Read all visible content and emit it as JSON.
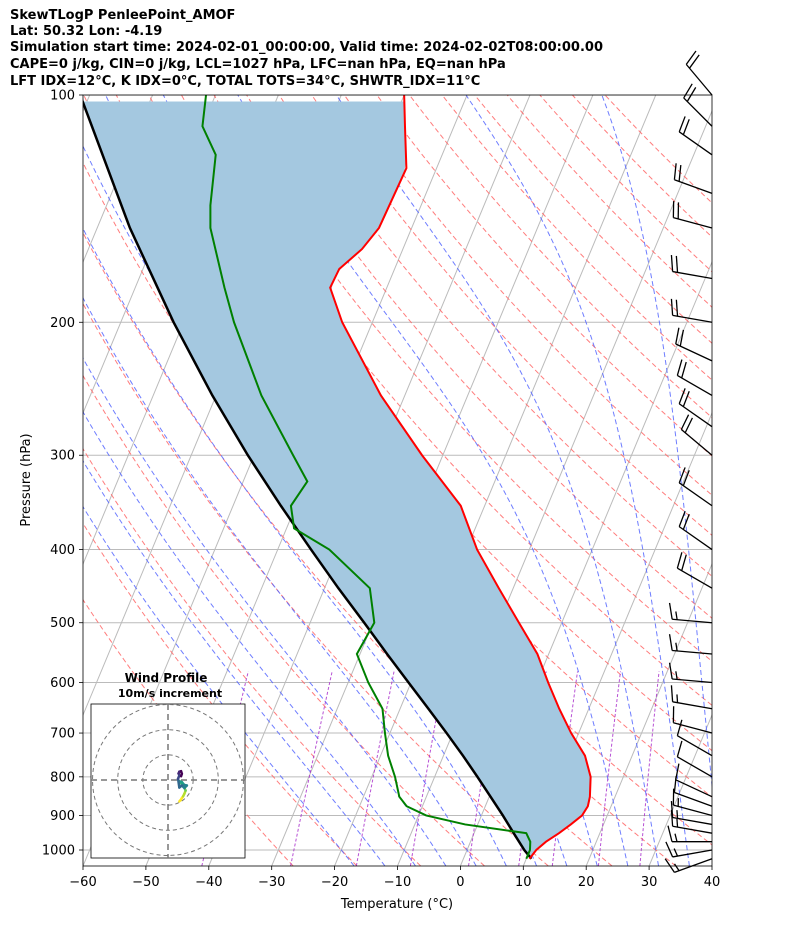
{
  "header": {
    "line1": "SkewTLogP PenleePoint_AMOF",
    "line2": "Lat: 50.32   Lon: -4.19",
    "line3": "Simulation start time: 2024-02-01_00:00:00, Valid time: 2024-02-02T08:00:00.00",
    "line4": "CAPE=0 j/kg, CIN=0 j/kg, LCL=1027 hPa, LFC=nan hPa, EQ=nan hPa",
    "line5": "LFT IDX=12°C, K IDX=0°C, TOTAL TOTS=34°C, SHWTR_IDX=11°C"
  },
  "chart_data": {
    "type": "skew-t log-p",
    "xlabel": "Temperature (°C)",
    "ylabel": "Pressure (hPa)",
    "xlim": [
      -60,
      40
    ],
    "ylim": [
      1050,
      100
    ],
    "skew_degC_per_decade": 50,
    "x_ticks": [
      "−60",
      "−50",
      "−40",
      "−30",
      "−20",
      "−10",
      "0",
      "10",
      "20",
      "30",
      "40"
    ],
    "y_ticks": [
      "100",
      "200",
      "300",
      "400",
      "500",
      "600",
      "700",
      "800",
      "900",
      "1000"
    ],
    "colors": {
      "temperature": "#ff0000",
      "dewpoint": "#008000",
      "parcel": "#000000",
      "cin_fill": "#a4c8e0",
      "dry_adiabats": "#ff6666",
      "moist_adiabats": "#5566ff",
      "mixing_ratio": "#aa33cc",
      "isotherms": "#bbbbbb",
      "wind_barbs": "#000000"
    },
    "temperature": [
      {
        "p": 1027,
        "t": 10.5
      },
      {
        "p": 1000,
        "t": 11.0
      },
      {
        "p": 975,
        "t": 12.0
      },
      {
        "p": 950,
        "t": 13.5
      },
      {
        "p": 925,
        "t": 14.8
      },
      {
        "p": 900,
        "t": 16.0
      },
      {
        "p": 875,
        "t": 16.3
      },
      {
        "p": 850,
        "t": 16.0
      },
      {
        "p": 800,
        "t": 14.8
      },
      {
        "p": 750,
        "t": 12.5
      },
      {
        "p": 700,
        "t": 8.8
      },
      {
        "p": 650,
        "t": 5.3
      },
      {
        "p": 600,
        "t": 1.8
      },
      {
        "p": 550,
        "t": -1.8
      },
      {
        "p": 500,
        "t": -6.8
      },
      {
        "p": 450,
        "t": -12.3
      },
      {
        "p": 400,
        "t": -18.3
      },
      {
        "p": 350,
        "t": -23.8
      },
      {
        "p": 300,
        "t": -33.3
      },
      {
        "p": 250,
        "t": -43.8
      },
      {
        "p": 200,
        "t": -54.8
      },
      {
        "p": 180,
        "t": -59.0
      },
      {
        "p": 170,
        "t": -58.8
      },
      {
        "p": 160,
        "t": -56.5
      },
      {
        "p": 150,
        "t": -55.2
      },
      {
        "p": 125,
        "t": -54.8
      },
      {
        "p": 110,
        "t": -57.8
      },
      {
        "p": 100,
        "t": -60.0
      }
    ],
    "dewpoint": [
      {
        "p": 1027,
        "t": 10.0
      },
      {
        "p": 1000,
        "t": 10.0
      },
      {
        "p": 975,
        "t": 9.5
      },
      {
        "p": 950,
        "t": 8.3
      },
      {
        "p": 925,
        "t": -2.0
      },
      {
        "p": 900,
        "t": -8.8
      },
      {
        "p": 875,
        "t": -12.5
      },
      {
        "p": 850,
        "t": -14.3
      },
      {
        "p": 800,
        "t": -16.3
      },
      {
        "p": 750,
        "t": -18.8
      },
      {
        "p": 700,
        "t": -20.8
      },
      {
        "p": 650,
        "t": -22.8
      },
      {
        "p": 600,
        "t": -26.8
      },
      {
        "p": 550,
        "t": -30.5
      },
      {
        "p": 500,
        "t": -29.8
      },
      {
        "p": 450,
        "t": -32.8
      },
      {
        "p": 400,
        "t": -41.8
      },
      {
        "p": 375,
        "t": -48.8
      },
      {
        "p": 350,
        "t": -50.8
      },
      {
        "p": 325,
        "t": -49.8
      },
      {
        "p": 300,
        "t": -53.8
      },
      {
        "p": 250,
        "t": -62.8
      },
      {
        "p": 200,
        "t": -72.0
      },
      {
        "p": 180,
        "t": -75.8
      },
      {
        "p": 150,
        "t": -82.0
      },
      {
        "p": 140,
        "t": -83.5
      },
      {
        "p": 120,
        "t": -86.0
      },
      {
        "p": 110,
        "t": -90.0
      },
      {
        "p": 100,
        "t": -91.5
      }
    ],
    "parcel": [
      {
        "p": 1027,
        "t": 10.8
      },
      {
        "p": 1000,
        "t": 9.1
      },
      {
        "p": 950,
        "t": 6.3
      },
      {
        "p": 900,
        "t": 3.4
      },
      {
        "p": 850,
        "t": 0.2
      },
      {
        "p": 800,
        "t": -3.2
      },
      {
        "p": 750,
        "t": -6.9
      },
      {
        "p": 700,
        "t": -11.0
      },
      {
        "p": 650,
        "t": -15.5
      },
      {
        "p": 600,
        "t": -20.4
      },
      {
        "p": 550,
        "t": -25.7
      },
      {
        "p": 500,
        "t": -31.4
      },
      {
        "p": 450,
        "t": -37.8
      },
      {
        "p": 400,
        "t": -44.7
      },
      {
        "p": 350,
        "t": -52.4
      },
      {
        "p": 300,
        "t": -61.0
      },
      {
        "p": 250,
        "t": -70.6
      },
      {
        "p": 200,
        "t": -81.6
      },
      {
        "p": 150,
        "t": -94.8
      },
      {
        "p": 100,
        "t": -111.5
      }
    ],
    "wind_barbs": [
      {
        "p": 1027,
        "speed_kt": 15,
        "dir_deg": 250
      },
      {
        "p": 1000,
        "speed_kt": 15,
        "dir_deg": 260
      },
      {
        "p": 975,
        "speed_kt": 15,
        "dir_deg": 270
      },
      {
        "p": 950,
        "speed_kt": 15,
        "dir_deg": 280
      },
      {
        "p": 925,
        "speed_kt": 15,
        "dir_deg": 280
      },
      {
        "p": 900,
        "speed_kt": 15,
        "dir_deg": 285
      },
      {
        "p": 875,
        "speed_kt": 10,
        "dir_deg": 290
      },
      {
        "p": 850,
        "speed_kt": 10,
        "dir_deg": 295
      },
      {
        "p": 800,
        "speed_kt": 10,
        "dir_deg": 300
      },
      {
        "p": 750,
        "speed_kt": 10,
        "dir_deg": 300
      },
      {
        "p": 700,
        "speed_kt": 10,
        "dir_deg": 285
      },
      {
        "p": 650,
        "speed_kt": 15,
        "dir_deg": 280
      },
      {
        "p": 600,
        "speed_kt": 15,
        "dir_deg": 275
      },
      {
        "p": 550,
        "speed_kt": 15,
        "dir_deg": 275
      },
      {
        "p": 500,
        "speed_kt": 15,
        "dir_deg": 275
      },
      {
        "p": 450,
        "speed_kt": 20,
        "dir_deg": 300
      },
      {
        "p": 400,
        "speed_kt": 20,
        "dir_deg": 305
      },
      {
        "p": 350,
        "speed_kt": 20,
        "dir_deg": 305
      },
      {
        "p": 300,
        "speed_kt": 20,
        "dir_deg": 310
      },
      {
        "p": 275,
        "speed_kt": 20,
        "dir_deg": 305
      },
      {
        "p": 250,
        "speed_kt": 20,
        "dir_deg": 300
      },
      {
        "p": 225,
        "speed_kt": 20,
        "dir_deg": 295
      },
      {
        "p": 200,
        "speed_kt": 20,
        "dir_deg": 280
      },
      {
        "p": 175,
        "speed_kt": 20,
        "dir_deg": 280
      },
      {
        "p": 150,
        "speed_kt": 20,
        "dir_deg": 285
      },
      {
        "p": 135,
        "speed_kt": 20,
        "dir_deg": 290
      },
      {
        "p": 120,
        "speed_kt": 20,
        "dir_deg": 305
      },
      {
        "p": 110,
        "speed_kt": 20,
        "dir_deg": 315
      },
      {
        "p": 100,
        "speed_kt": 20,
        "dir_deg": 320
      }
    ],
    "hodograph": {
      "title": "Wind Profile",
      "subtitle": "10m/s increment",
      "rings_ms": [
        10,
        20,
        30
      ],
      "range_ms": 30,
      "points_uv": [
        [
          4.5,
          -8.5
        ],
        [
          5.0,
          -8.0
        ],
        [
          5.5,
          -7.2
        ],
        [
          6.0,
          -6.5
        ],
        [
          6.5,
          -5.5
        ],
        [
          7.0,
          -4.2
        ],
        [
          6.5,
          -3.0
        ],
        [
          6.0,
          -1.8
        ],
        [
          5.0,
          -1.2
        ],
        [
          4.5,
          -0.5
        ],
        [
          5.5,
          -0.8
        ],
        [
          6.5,
          -2.0
        ],
        [
          7.5,
          -2.2
        ],
        [
          6.5,
          -3.2
        ],
        [
          5.5,
          -2.2
        ],
        [
          4.5,
          -3.0
        ],
        [
          4.0,
          0.5
        ],
        [
          4.5,
          1.8
        ],
        [
          4.2,
          2.6
        ],
        [
          4.5,
          3.3
        ],
        [
          5.2,
          3.5
        ],
        [
          5.5,
          2.5
        ],
        [
          5.2,
          1.5
        ]
      ]
    }
  }
}
